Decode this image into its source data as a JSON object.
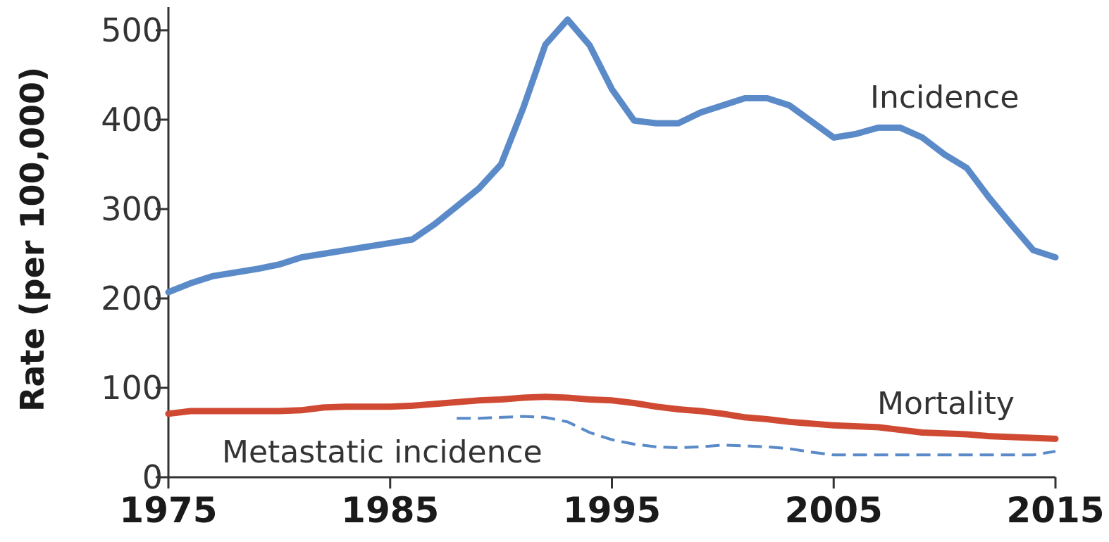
{
  "chart_data": {
    "type": "line",
    "title": "",
    "xlabel": "",
    "ylabel": "Rate (per 100,000)",
    "xlim": [
      1975,
      2015
    ],
    "ylim": [
      0,
      500
    ],
    "x_ticks": [
      "1975",
      "1985",
      "1995",
      "2005",
      "2015"
    ],
    "y_ticks": [
      "0",
      "100",
      "200",
      "300",
      "400",
      "500"
    ],
    "grid": false,
    "legend": "none (series labeled directly on the plot)",
    "series": [
      {
        "name": "Incidence",
        "color": "#5b8ac9",
        "dash": false,
        "points": [
          [
            1975,
            207
          ],
          [
            1976,
            217
          ],
          [
            1977,
            225
          ],
          [
            1978,
            229
          ],
          [
            1979,
            233
          ],
          [
            1980,
            238
          ],
          [
            1981,
            246
          ],
          [
            1982,
            250
          ],
          [
            1983,
            254
          ],
          [
            1984,
            258
          ],
          [
            1985,
            262
          ],
          [
            1986,
            266
          ],
          [
            1987,
            283
          ],
          [
            1988,
            303
          ],
          [
            1989,
            323
          ],
          [
            1990,
            350
          ],
          [
            1991,
            413
          ],
          [
            1992,
            484
          ],
          [
            1993,
            512
          ],
          [
            1994,
            483
          ],
          [
            1995,
            434
          ],
          [
            1996,
            399
          ],
          [
            1997,
            396
          ],
          [
            1998,
            396
          ],
          [
            1999,
            408
          ],
          [
            2000,
            416
          ],
          [
            2001,
            424
          ],
          [
            2002,
            424
          ],
          [
            2003,
            416
          ],
          [
            2004,
            398
          ],
          [
            2005,
            380
          ],
          [
            2006,
            384
          ],
          [
            2007,
            391
          ],
          [
            2008,
            391
          ],
          [
            2009,
            380
          ],
          [
            2010,
            361
          ],
          [
            2011,
            346
          ],
          [
            2012,
            313
          ],
          [
            2013,
            283
          ],
          [
            2014,
            254
          ],
          [
            2015,
            246
          ]
        ]
      },
      {
        "name": "Mortality",
        "color": "#d04a33",
        "dash": false,
        "points": [
          [
            1975,
            71
          ],
          [
            1976,
            74
          ],
          [
            1977,
            74
          ],
          [
            1978,
            74
          ],
          [
            1979,
            74
          ],
          [
            1980,
            74
          ],
          [
            1981,
            75
          ],
          [
            1982,
            78
          ],
          [
            1983,
            79
          ],
          [
            1984,
            79
          ],
          [
            1985,
            79
          ],
          [
            1986,
            80
          ],
          [
            1987,
            82
          ],
          [
            1988,
            84
          ],
          [
            1989,
            86
          ],
          [
            1990,
            87
          ],
          [
            1991,
            89
          ],
          [
            1992,
            90
          ],
          [
            1993,
            89
          ],
          [
            1994,
            87
          ],
          [
            1995,
            86
          ],
          [
            1996,
            83
          ],
          [
            1997,
            79
          ],
          [
            1998,
            76
          ],
          [
            1999,
            74
          ],
          [
            2000,
            71
          ],
          [
            2001,
            67
          ],
          [
            2002,
            65
          ],
          [
            2003,
            62
          ],
          [
            2004,
            60
          ],
          [
            2005,
            58
          ],
          [
            2006,
            57
          ],
          [
            2007,
            56
          ],
          [
            2008,
            53
          ],
          [
            2009,
            50
          ],
          [
            2010,
            49
          ],
          [
            2011,
            48
          ],
          [
            2012,
            46
          ],
          [
            2013,
            45
          ],
          [
            2014,
            44
          ],
          [
            2015,
            43
          ]
        ]
      },
      {
        "name": "Metastatic incidence",
        "color": "#5b8ac9",
        "dash": true,
        "points": [
          [
            1988,
            66
          ],
          [
            1989,
            66
          ],
          [
            1990,
            67
          ],
          [
            1991,
            68
          ],
          [
            1992,
            67
          ],
          [
            1993,
            62
          ],
          [
            1994,
            50
          ],
          [
            1995,
            42
          ],
          [
            1996,
            37
          ],
          [
            1997,
            34
          ],
          [
            1998,
            33
          ],
          [
            1999,
            34
          ],
          [
            2000,
            36
          ],
          [
            2001,
            35
          ],
          [
            2002,
            34
          ],
          [
            2003,
            32
          ],
          [
            2004,
            28
          ],
          [
            2005,
            25
          ],
          [
            2006,
            25
          ],
          [
            2007,
            25
          ],
          [
            2008,
            25
          ],
          [
            2009,
            25
          ],
          [
            2010,
            25
          ],
          [
            2011,
            25
          ],
          [
            2012,
            25
          ],
          [
            2013,
            25
          ],
          [
            2014,
            25
          ],
          [
            2015,
            29
          ]
        ]
      }
    ]
  }
}
